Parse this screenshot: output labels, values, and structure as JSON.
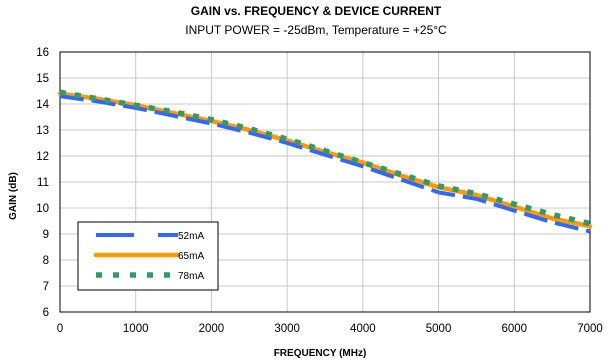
{
  "chart_data": {
    "type": "line",
    "title": "GAIN vs. FREQUENCY & DEVICE CURRENT",
    "subtitle": "INPUT POWER = -25dBm, Temperature = +25°C",
    "xlabel": "FREQUENCY (MHz)",
    "ylabel": "GAIN (dB)",
    "xlim": [
      0,
      7000
    ],
    "ylim": [
      6,
      16
    ],
    "x_ticks": [
      0,
      1000,
      2000,
      3000,
      4000,
      5000,
      6000,
      7000
    ],
    "y_ticks": [
      6,
      7,
      8,
      9,
      10,
      11,
      12,
      13,
      14,
      15,
      16
    ],
    "grid": true,
    "legend_position": "lower-left",
    "x": [
      0,
      500,
      1000,
      1500,
      2000,
      2500,
      3000,
      3500,
      4000,
      4500,
      5000,
      5500,
      6000,
      6500,
      7000
    ],
    "series": [
      {
        "name": "52mA",
        "color": "#3366ff",
        "style": "long-dash",
        "values": [
          14.3,
          14.1,
          13.85,
          13.55,
          13.25,
          12.9,
          12.5,
          12.05,
          11.6,
          11.1,
          10.6,
          10.35,
          9.9,
          9.45,
          9.1
        ]
      },
      {
        "name": "65mA",
        "color": "#ff9900",
        "style": "solid",
        "values": [
          14.4,
          14.2,
          13.95,
          13.65,
          13.35,
          13.0,
          12.6,
          12.15,
          11.75,
          11.25,
          10.8,
          10.5,
          10.05,
          9.6,
          9.3
        ]
      },
      {
        "name": "78mA",
        "color": "#339966",
        "style": "square-dot",
        "values": [
          14.45,
          14.2,
          13.95,
          13.7,
          13.4,
          13.05,
          12.65,
          12.2,
          11.75,
          11.3,
          10.85,
          10.55,
          10.15,
          9.75,
          9.4
        ]
      }
    ]
  }
}
